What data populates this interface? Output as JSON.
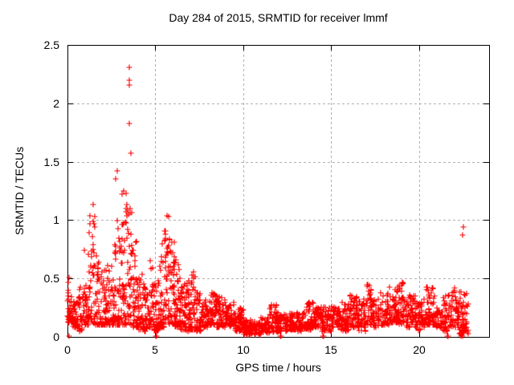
{
  "chart_data": {
    "type": "scatter",
    "title": "Day 284 of 2015, SRMTID for receiver lmmf",
    "xlabel": "GPS time / hours",
    "ylabel": "SRMTID / TECUs",
    "xlim": [
      0,
      24
    ],
    "ylim": [
      0,
      2.5
    ],
    "xticks": [
      0,
      5,
      10,
      15,
      20
    ],
    "xtick_labels": [
      "0",
      "5",
      "10",
      "15",
      "20"
    ],
    "yticks": [
      0,
      0.5,
      1,
      1.5,
      2,
      2.5
    ],
    "ytick_labels": [
      "0",
      "0.5",
      "1",
      "1.5",
      "2",
      "2.5"
    ],
    "grid": true,
    "legend": false,
    "colors": {
      "marker": "#ff0000",
      "grid": "#b0b0b0",
      "border": "#000000",
      "text": "#000000",
      "background": "#ffffff"
    },
    "marker": {
      "shape": "plus",
      "size": 7,
      "stroke_width": 1.1
    },
    "seed": 20151284,
    "envelope_bins": [
      [
        0.0,
        0.1,
        0.3,
        0.57,
        6,
        1.0
      ],
      [
        0.0,
        0.3,
        0.12,
        0.35,
        40,
        1.5
      ],
      [
        0.3,
        0.6,
        0.08,
        0.32,
        35,
        1.5
      ],
      [
        0.6,
        0.9,
        0.05,
        0.45,
        35,
        2.0
      ],
      [
        0.9,
        1.2,
        0.1,
        0.5,
        35,
        2.0
      ],
      [
        1.2,
        1.4,
        0.15,
        1.05,
        25,
        2.2
      ],
      [
        1.4,
        1.6,
        0.12,
        1.13,
        25,
        2.2
      ],
      [
        1.6,
        1.9,
        0.1,
        0.72,
        35,
        2.0
      ],
      [
        1.9,
        2.2,
        0.1,
        0.58,
        35,
        1.8
      ],
      [
        2.2,
        2.5,
        0.1,
        0.62,
        35,
        1.8
      ],
      [
        2.5,
        2.8,
        0.1,
        0.92,
        35,
        2.0
      ],
      [
        2.8,
        3.1,
        0.1,
        1.0,
        40,
        1.8
      ],
      [
        3.1,
        3.4,
        0.1,
        1.25,
        40,
        1.8
      ],
      [
        3.4,
        3.7,
        0.1,
        1.1,
        40,
        1.6
      ],
      [
        3.7,
        4.0,
        0.08,
        0.82,
        40,
        1.8
      ],
      [
        4.0,
        4.3,
        0.06,
        0.55,
        38,
        1.8
      ],
      [
        4.3,
        4.6,
        0.05,
        0.48,
        38,
        1.8
      ],
      [
        4.6,
        4.9,
        0.08,
        0.66,
        38,
        1.8
      ],
      [
        4.9,
        5.2,
        0.05,
        0.5,
        38,
        1.8
      ],
      [
        5.2,
        5.5,
        0.08,
        0.8,
        38,
        1.8
      ],
      [
        5.5,
        5.8,
        0.12,
        1.04,
        42,
        1.5
      ],
      [
        5.8,
        6.1,
        0.1,
        0.92,
        42,
        1.6
      ],
      [
        6.1,
        6.4,
        0.08,
        0.7,
        40,
        1.8
      ],
      [
        6.4,
        6.7,
        0.06,
        0.55,
        40,
        1.8
      ],
      [
        6.7,
        7.0,
        0.05,
        0.5,
        38,
        1.8
      ],
      [
        7.0,
        7.3,
        0.06,
        0.56,
        36,
        1.8
      ],
      [
        7.3,
        7.6,
        0.05,
        0.38,
        36,
        1.6
      ],
      [
        7.6,
        8.0,
        0.08,
        0.32,
        45,
        1.5
      ],
      [
        8.0,
        8.5,
        0.1,
        0.38,
        55,
        1.5
      ],
      [
        8.5,
        9.0,
        0.08,
        0.36,
        55,
        1.5
      ],
      [
        9.0,
        9.5,
        0.09,
        0.3,
        55,
        1.4
      ],
      [
        9.5,
        10.0,
        0.05,
        0.26,
        52,
        1.4
      ],
      [
        10.0,
        10.5,
        0.02,
        0.15,
        52,
        1.3
      ],
      [
        10.5,
        11.0,
        0.02,
        0.13,
        52,
        1.3
      ],
      [
        11.0,
        11.5,
        0.03,
        0.18,
        52,
        1.4
      ],
      [
        11.5,
        12.0,
        0.04,
        0.28,
        52,
        1.7
      ],
      [
        12.0,
        12.5,
        0.05,
        0.2,
        52,
        1.4
      ],
      [
        12.5,
        13.0,
        0.06,
        0.2,
        52,
        1.3
      ],
      [
        13.0,
        13.5,
        0.05,
        0.22,
        52,
        1.3
      ],
      [
        13.5,
        14.0,
        0.06,
        0.3,
        52,
        1.5
      ],
      [
        14.0,
        14.5,
        0.08,
        0.26,
        52,
        1.4
      ],
      [
        14.5,
        15.0,
        0.05,
        0.26,
        52,
        1.4
      ],
      [
        15.0,
        15.5,
        0.08,
        0.26,
        52,
        1.4
      ],
      [
        15.5,
        16.0,
        0.05,
        0.3,
        52,
        1.5
      ],
      [
        16.0,
        16.5,
        0.08,
        0.36,
        52,
        1.5
      ],
      [
        16.5,
        17.0,
        0.05,
        0.32,
        52,
        1.5
      ],
      [
        17.0,
        17.3,
        0.1,
        0.45,
        32,
        1.6
      ],
      [
        17.3,
        17.8,
        0.08,
        0.32,
        50,
        1.5
      ],
      [
        17.8,
        18.3,
        0.1,
        0.38,
        52,
        1.5
      ],
      [
        18.3,
        18.8,
        0.12,
        0.43,
        52,
        1.5
      ],
      [
        18.8,
        19.3,
        0.1,
        0.47,
        52,
        1.5
      ],
      [
        19.3,
        19.8,
        0.08,
        0.36,
        52,
        1.5
      ],
      [
        19.8,
        20.3,
        0.05,
        0.3,
        52,
        1.5
      ],
      [
        20.3,
        20.9,
        0.1,
        0.44,
        58,
        1.6
      ],
      [
        20.9,
        21.4,
        0.08,
        0.26,
        50,
        1.4
      ],
      [
        21.4,
        21.9,
        0.05,
        0.36,
        50,
        1.6
      ],
      [
        21.9,
        22.3,
        0.08,
        0.42,
        40,
        1.6
      ],
      [
        22.3,
        22.8,
        0.02,
        0.4,
        60,
        1.8
      ]
    ],
    "outlier_points": [
      [
        3.52,
        2.31
      ],
      [
        3.52,
        2.2
      ],
      [
        3.53,
        2.16
      ],
      [
        3.52,
        1.83
      ],
      [
        3.59,
        1.57
      ],
      [
        2.82,
        1.42
      ],
      [
        2.76,
        1.35
      ],
      [
        3.18,
        1.25
      ],
      [
        3.1,
        1.22
      ],
      [
        1.46,
        1.13
      ],
      [
        1.3,
        1.04
      ],
      [
        5.68,
        1.04
      ],
      [
        0.95,
        0.74
      ],
      [
        22.5,
        0.87
      ],
      [
        22.55,
        0.94
      ]
    ],
    "near_zero_hours": [
      0.07,
      0.1,
      5.05,
      5.09,
      12.13,
      12.18,
      14.52,
      14.57,
      21.6,
      21.65,
      22.42,
      22.47
    ],
    "near_zero_value": 0.005
  }
}
